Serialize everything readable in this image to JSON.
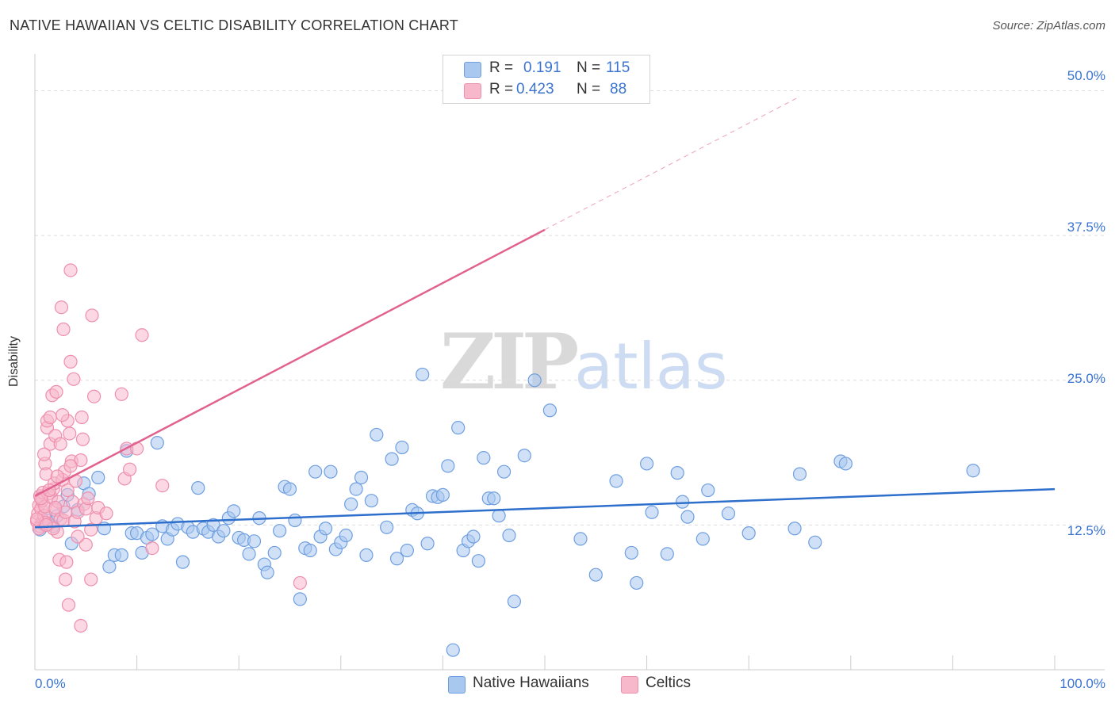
{
  "header": {
    "title": "NATIVE HAWAIIAN VS CELTIC DISABILITY CORRELATION CHART",
    "source": "Source: ZipAtlas.com"
  },
  "watermark": {
    "zip": "ZIP",
    "atlas": "atlas"
  },
  "legend": {
    "rows": [
      {
        "r_label": "R =",
        "r_value": "0.191",
        "n_label": "N =",
        "n_value": "115"
      },
      {
        "r_label": "R =",
        "r_value": "0.423",
        "n_label": "N =",
        "n_value": "88"
      }
    ]
  },
  "colors": {
    "blue_fill": "#a9c8f0",
    "blue_stroke": "#6f9fe0",
    "blue_line": "#2f6fcc",
    "pink_fill": "#f7b8cc",
    "pink_stroke": "#ee8fad",
    "pink_line": "#e2628f",
    "grid": "#dddddd",
    "axis_text": "#3b74d0"
  },
  "chart_data": {
    "type": "scatter",
    "title": "NATIVE HAWAIIAN VS CELTIC DISABILITY CORRELATION CHART",
    "xlabel": "",
    "ylabel": "Disability",
    "xlim": [
      0,
      100
    ],
    "ylim": [
      0,
      52.5
    ],
    "x_tick_labels": [
      "0.0%",
      "100.0%"
    ],
    "y_ticks": [
      12.5,
      25.0,
      37.5,
      50.0
    ],
    "y_tick_labels": [
      "12.5%",
      "25.0%",
      "37.5%",
      "50.0%"
    ],
    "grid": true,
    "legend_position": "bottom-center",
    "series": [
      {
        "name": "Native Hawaiians",
        "color": "#a9c8f0",
        "r": 0.191,
        "n": 115,
        "trend": {
          "x": [
            0,
            100
          ],
          "y": [
            12.3,
            15.6
          ],
          "dashed_extension": false
        },
        "points": [
          [
            0.5,
            12.1
          ],
          [
            0.8,
            12.6
          ],
          [
            1.2,
            12.9
          ],
          [
            1.8,
            12.4
          ],
          [
            2.2,
            13.3
          ],
          [
            2.8,
            14.1
          ],
          [
            3.2,
            15.1
          ],
          [
            3.6,
            10.9
          ],
          [
            4.2,
            13.8
          ],
          [
            4.8,
            16.1
          ],
          [
            5.3,
            15.2
          ],
          [
            6.2,
            16.6
          ],
          [
            6.8,
            12.2
          ],
          [
            7.3,
            8.9
          ],
          [
            7.8,
            9.9
          ],
          [
            8.5,
            9.9
          ],
          [
            9.0,
            18.9
          ],
          [
            9.5,
            11.8
          ],
          [
            10.0,
            11.8
          ],
          [
            10.5,
            10.1
          ],
          [
            11.0,
            11.4
          ],
          [
            11.5,
            11.7
          ],
          [
            12.0,
            19.6
          ],
          [
            12.5,
            12.4
          ],
          [
            13.0,
            11.3
          ],
          [
            13.5,
            12.1
          ],
          [
            14.0,
            12.6
          ],
          [
            14.5,
            9.3
          ],
          [
            15.0,
            12.3
          ],
          [
            15.5,
            11.9
          ],
          [
            16.0,
            15.7
          ],
          [
            16.5,
            12.2
          ],
          [
            17.0,
            11.9
          ],
          [
            17.5,
            12.5
          ],
          [
            18.0,
            11.5
          ],
          [
            18.5,
            12.0
          ],
          [
            19.0,
            13.1
          ],
          [
            19.5,
            13.7
          ],
          [
            20.0,
            11.4
          ],
          [
            20.5,
            11.2
          ],
          [
            21.0,
            10.0
          ],
          [
            21.5,
            11.1
          ],
          [
            22.0,
            13.1
          ],
          [
            22.5,
            9.1
          ],
          [
            22.8,
            8.4
          ],
          [
            23.5,
            10.1
          ],
          [
            24.0,
            12.0
          ],
          [
            24.5,
            15.8
          ],
          [
            25.0,
            15.6
          ],
          [
            25.5,
            12.9
          ],
          [
            26.0,
            6.1
          ],
          [
            26.5,
            10.5
          ],
          [
            27.0,
            10.3
          ],
          [
            27.5,
            17.1
          ],
          [
            28.0,
            11.5
          ],
          [
            28.5,
            12.2
          ],
          [
            29.0,
            17.1
          ],
          [
            29.5,
            10.4
          ],
          [
            30.0,
            11.0
          ],
          [
            30.5,
            11.6
          ],
          [
            31.0,
            14.3
          ],
          [
            31.5,
            15.6
          ],
          [
            32.0,
            16.6
          ],
          [
            32.5,
            9.9
          ],
          [
            33.0,
            14.6
          ],
          [
            33.5,
            20.3
          ],
          [
            34.5,
            12.3
          ],
          [
            35.0,
            18.2
          ],
          [
            35.5,
            9.6
          ],
          [
            36.0,
            19.2
          ],
          [
            36.5,
            10.3
          ],
          [
            37.0,
            13.8
          ],
          [
            37.5,
            13.5
          ],
          [
            38.0,
            25.5
          ],
          [
            38.5,
            10.9
          ],
          [
            39.0,
            15.0
          ],
          [
            39.5,
            14.9
          ],
          [
            40.0,
            15.1
          ],
          [
            40.5,
            17.6
          ],
          [
            41.0,
            1.7
          ],
          [
            41.5,
            20.9
          ],
          [
            42.0,
            10.3
          ],
          [
            42.5,
            11.1
          ],
          [
            43.0,
            11.5
          ],
          [
            43.5,
            9.4
          ],
          [
            44.0,
            18.3
          ],
          [
            44.5,
            14.8
          ],
          [
            45.0,
            14.8
          ],
          [
            45.5,
            13.3
          ],
          [
            46.0,
            17.1
          ],
          [
            46.5,
            11.6
          ],
          [
            47.0,
            5.9
          ],
          [
            48.0,
            18.5
          ],
          [
            49.0,
            25.0
          ],
          [
            50.5,
            22.4
          ],
          [
            53.5,
            11.3
          ],
          [
            55.0,
            8.2
          ],
          [
            57.0,
            16.3
          ],
          [
            58.5,
            10.1
          ],
          [
            59.0,
            7.5
          ],
          [
            60.0,
            17.8
          ],
          [
            60.5,
            13.6
          ],
          [
            62.0,
            10.0
          ],
          [
            63.0,
            17.0
          ],
          [
            63.5,
            14.5
          ],
          [
            64.0,
            13.2
          ],
          [
            65.5,
            11.3
          ],
          [
            66.0,
            15.5
          ],
          [
            68.0,
            13.5
          ],
          [
            70.0,
            11.8
          ],
          [
            74.5,
            12.2
          ],
          [
            75.0,
            16.9
          ],
          [
            76.5,
            11.0
          ],
          [
            79.0,
            18.0
          ],
          [
            79.5,
            17.8
          ],
          [
            92.0,
            17.2
          ]
        ]
      },
      {
        "name": "Celtics",
        "color": "#f7b8cc",
        "r": 0.423,
        "n": 88,
        "trend": {
          "x": [
            0,
            50
          ],
          "y": [
            15.0,
            38.0
          ],
          "dashed_extension": {
            "x": [
              50,
              75
            ],
            "y": [
              38.0,
              49.5
            ]
          }
        },
        "points": [
          [
            0.2,
            12.8
          ],
          [
            0.3,
            13.5
          ],
          [
            0.4,
            14.2
          ],
          [
            0.5,
            15.0
          ],
          [
            0.5,
            12.4
          ],
          [
            0.6,
            13.9
          ],
          [
            0.7,
            14.6
          ],
          [
            0.8,
            15.3
          ],
          [
            0.8,
            12.9
          ],
          [
            0.9,
            13.3
          ],
          [
            1.0,
            17.8
          ],
          [
            1.0,
            14.1
          ],
          [
            1.1,
            16.9
          ],
          [
            1.2,
            20.9
          ],
          [
            1.2,
            21.5
          ],
          [
            1.3,
            15.2
          ],
          [
            1.4,
            12.6
          ],
          [
            1.5,
            19.5
          ],
          [
            1.5,
            21.8
          ],
          [
            1.6,
            14.9
          ],
          [
            1.7,
            23.7
          ],
          [
            1.8,
            15.6
          ],
          [
            1.9,
            16.1
          ],
          [
            2.0,
            20.2
          ],
          [
            2.0,
            13.8
          ],
          [
            2.1,
            24.0
          ],
          [
            2.2,
            11.9
          ],
          [
            2.3,
            14.5
          ],
          [
            2.4,
            9.5
          ],
          [
            2.5,
            19.5
          ],
          [
            2.5,
            13.0
          ],
          [
            2.6,
            31.3
          ],
          [
            2.7,
            16.4
          ],
          [
            2.8,
            12.9
          ],
          [
            2.8,
            29.4
          ],
          [
            2.9,
            17.1
          ],
          [
            3.0,
            7.8
          ],
          [
            3.0,
            13.6
          ],
          [
            3.1,
            9.3
          ],
          [
            3.2,
            21.5
          ],
          [
            3.2,
            15.5
          ],
          [
            3.3,
            5.6
          ],
          [
            3.4,
            20.4
          ],
          [
            3.5,
            34.5
          ],
          [
            3.5,
            26.6
          ],
          [
            3.6,
            18.0
          ],
          [
            3.7,
            14.5
          ],
          [
            3.8,
            25.1
          ],
          [
            3.9,
            12.8
          ],
          [
            4.0,
            16.3
          ],
          [
            4.2,
            13.6
          ],
          [
            4.5,
            18.1
          ],
          [
            4.5,
            3.8
          ],
          [
            4.6,
            21.8
          ],
          [
            4.7,
            19.9
          ],
          [
            4.8,
            14.3
          ],
          [
            5.0,
            13.9
          ],
          [
            5.0,
            10.8
          ],
          [
            5.2,
            14.8
          ],
          [
            5.5,
            12.1
          ],
          [
            5.5,
            7.8
          ],
          [
            5.6,
            30.6
          ],
          [
            5.8,
            23.6
          ],
          [
            6.0,
            13.1
          ],
          [
            6.2,
            14.0
          ],
          [
            7.0,
            13.5
          ],
          [
            8.5,
            23.8
          ],
          [
            8.8,
            16.5
          ],
          [
            9.0,
            19.1
          ],
          [
            9.3,
            17.3
          ],
          [
            10.0,
            19.1
          ],
          [
            10.5,
            28.9
          ],
          [
            11.5,
            10.5
          ],
          [
            12.5,
            15.9
          ],
          [
            26.0,
            7.5
          ],
          [
            0.4,
            12.2
          ],
          [
            1.0,
            12.7
          ],
          [
            1.8,
            12.2
          ],
          [
            0.2,
            13.0
          ],
          [
            0.6,
            14.8
          ],
          [
            1.4,
            15.5
          ],
          [
            2.2,
            16.7
          ],
          [
            3.5,
            17.6
          ],
          [
            0.9,
            18.6
          ],
          [
            2.7,
            22.0
          ],
          [
            4.2,
            11.5
          ],
          [
            1.1,
            12.5
          ],
          [
            2.0,
            14.0
          ]
        ]
      }
    ]
  },
  "bottom_legend": {
    "items": [
      {
        "label": "Native Hawaiians"
      },
      {
        "label": "Celtics"
      }
    ]
  }
}
